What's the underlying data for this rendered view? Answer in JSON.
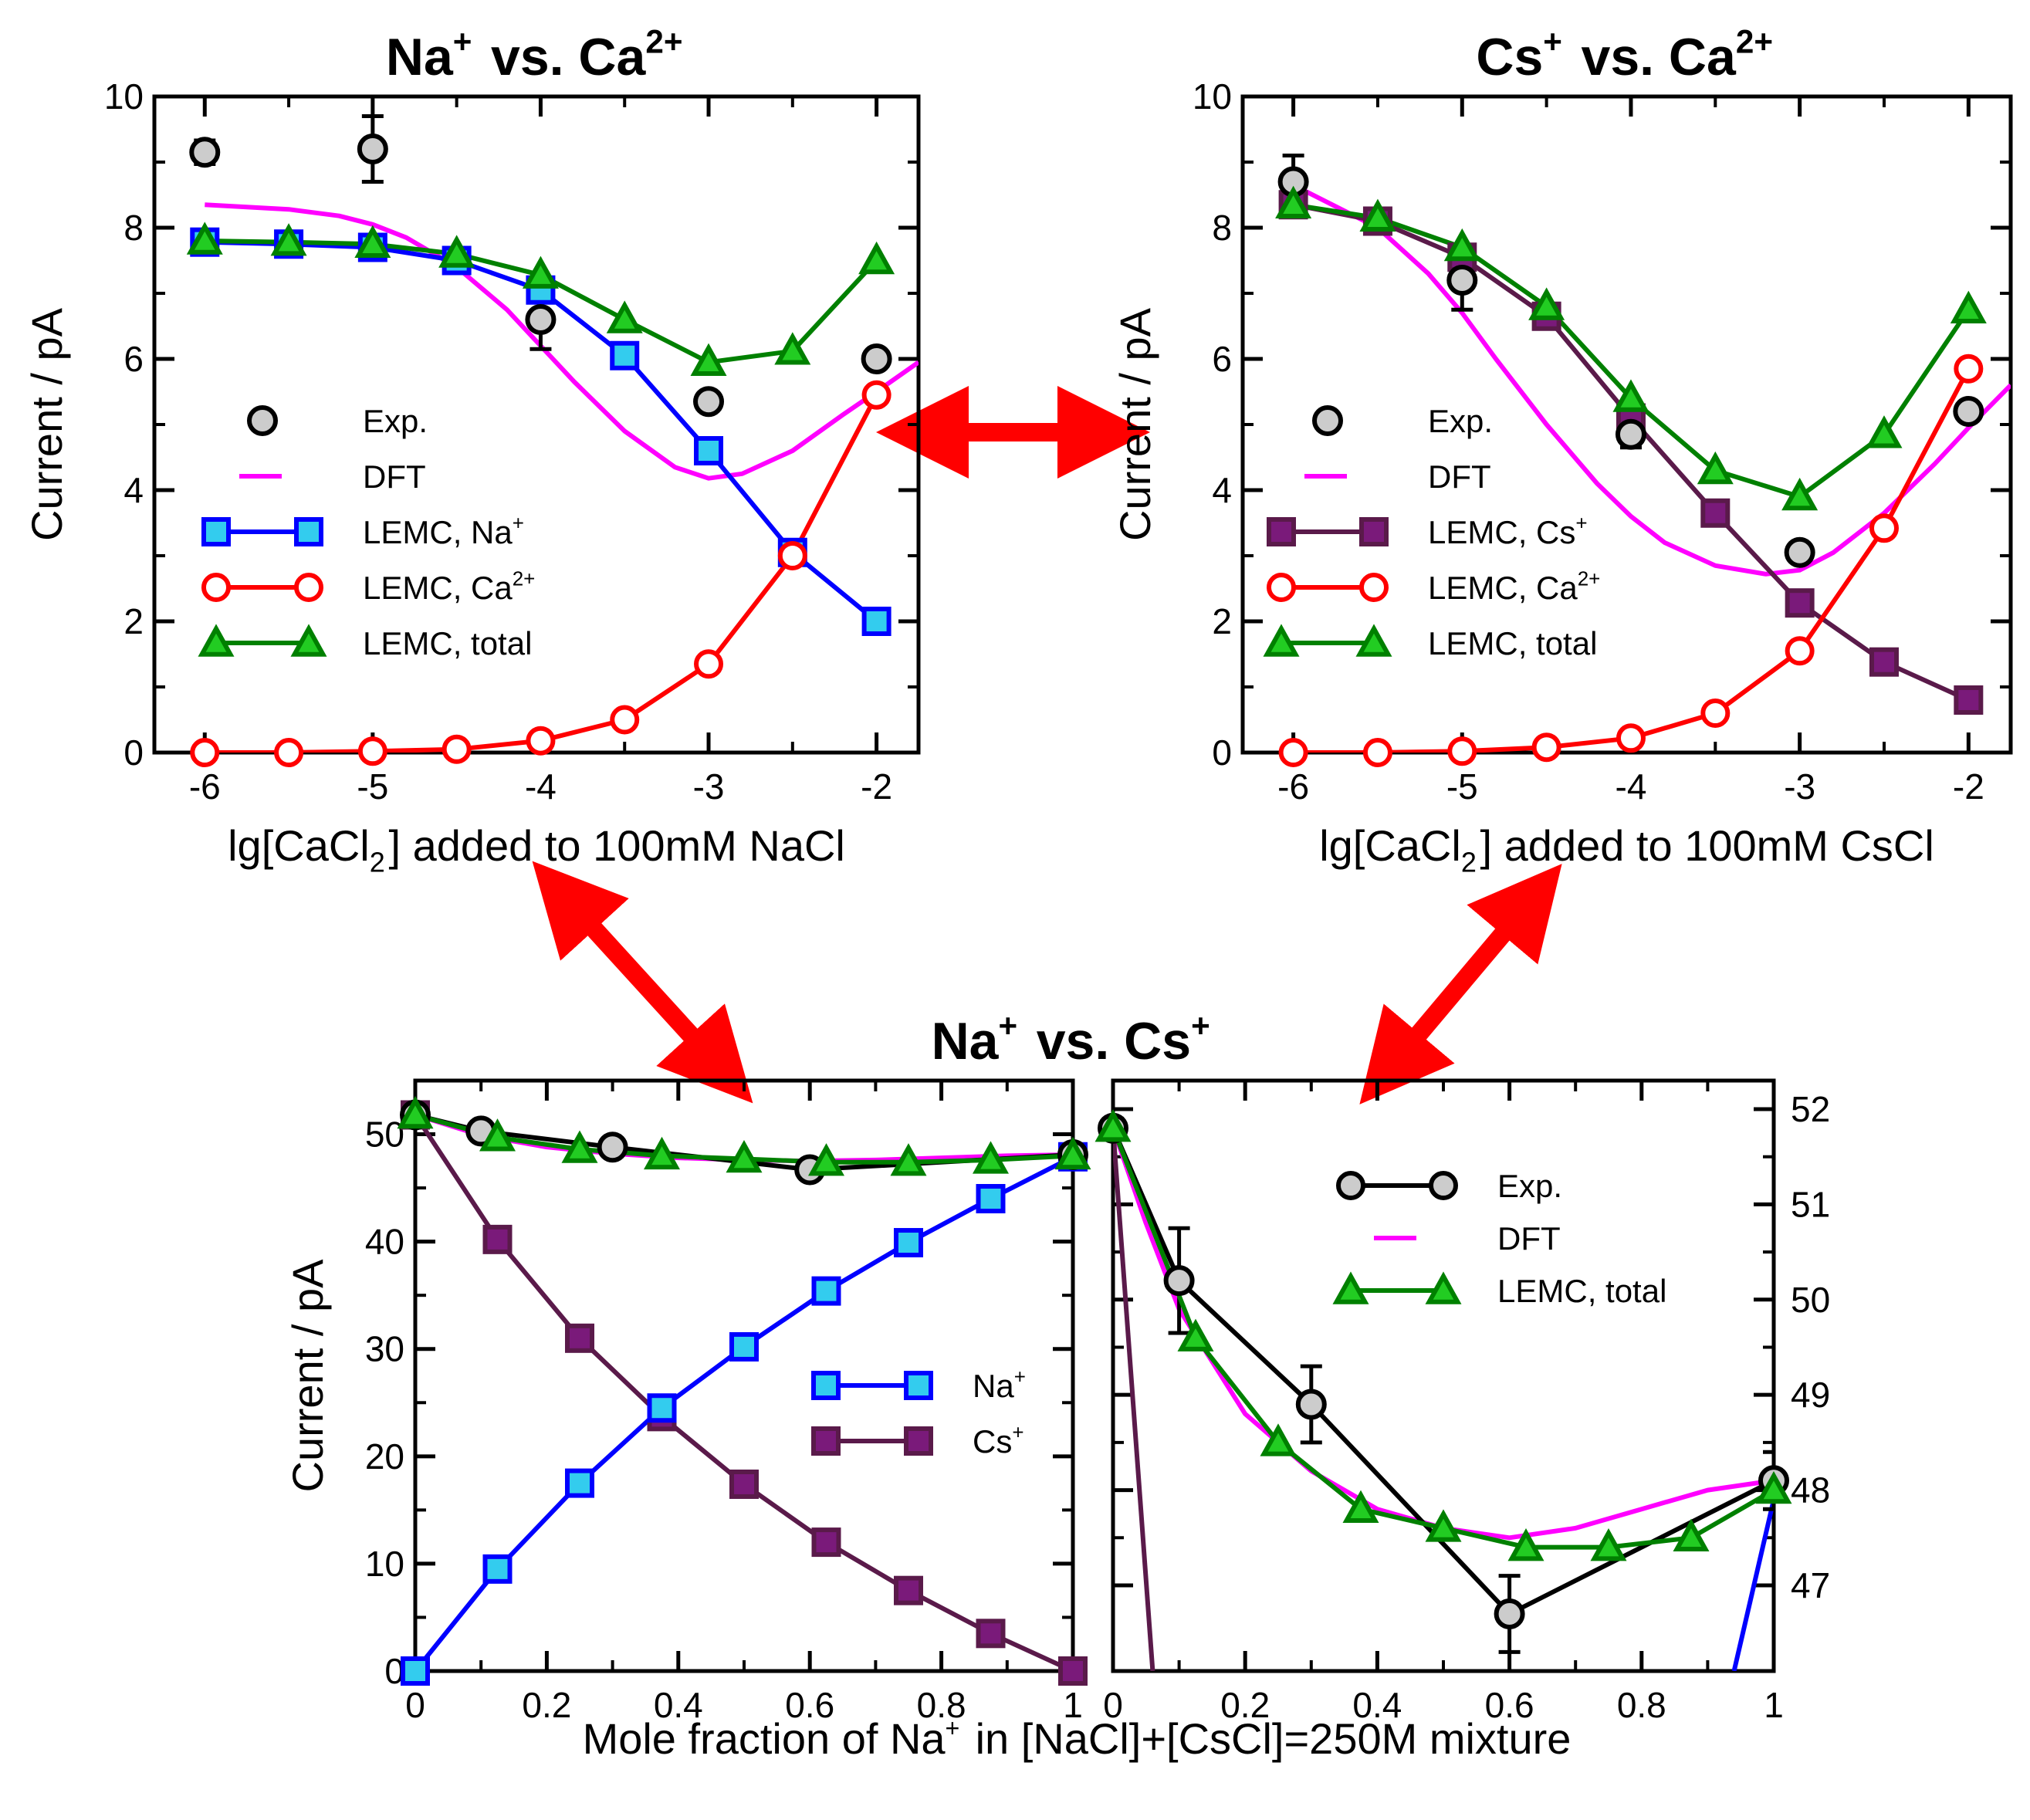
{
  "colors": {
    "exp_fill": "#cccccc",
    "dft": "#ff00ff",
    "na": "#0000ff",
    "na_fill": "#33ccee",
    "ca": "#ff0000",
    "cs": "#5a1a4a",
    "cs_fill": "#7a1a7a",
    "total": "#008000",
    "total_fill": "#22cc22",
    "arrow": "#ff0000"
  },
  "chart_data": [
    {
      "id": "na_ca",
      "type": "line",
      "title": "Na<sup>+</sup> vs. Ca<sup>2+</sup>",
      "xlabel": "lg[CaCl<sub>2</sub>] added to 100mM NaCl",
      "ylabel": "Current / pA",
      "xlim": [
        -6.3,
        -1.75
      ],
      "ylim": [
        0,
        10
      ],
      "xticks": [
        -6,
        -5,
        -4,
        -3,
        -2
      ],
      "xtick_labels": [
        "-6",
        "-5",
        "-4",
        "-3",
        "-2"
      ],
      "yticks": [
        0,
        2,
        4,
        6,
        8,
        10
      ],
      "ytick_labels": [
        "0",
        "2",
        "4",
        "6",
        "8",
        "10"
      ],
      "legend": [
        {
          "key": "exp",
          "label": "Exp."
        },
        {
          "key": "dft",
          "label": "DFT"
        },
        {
          "key": "ion1",
          "label": "LEMC, Na<sup>+</sup>"
        },
        {
          "key": "ion2",
          "label": "LEMC, Ca<sup>2+</sup>"
        },
        {
          "key": "total",
          "label": "LEMC, total"
        }
      ],
      "series": [
        {
          "key": "exp",
          "name": "Exp.",
          "marker": "circle",
          "line": false,
          "x": [
            -6,
            -5,
            -4,
            -3,
            -2
          ],
          "y": [
            9.15,
            9.2,
            6.6,
            5.35,
            6.0
          ],
          "yerr": [
            0.18,
            0.5,
            0.45,
            0.12,
            0.12
          ]
        },
        {
          "key": "dft",
          "name": "DFT",
          "marker": "none",
          "line": true,
          "x": [
            -6.0,
            -5.5,
            -5.2,
            -5.0,
            -4.8,
            -4.5,
            -4.2,
            -4.0,
            -3.8,
            -3.5,
            -3.2,
            -3.0,
            -2.8,
            -2.5,
            -2.2,
            -2.0,
            -1.75
          ],
          "y": [
            8.35,
            8.28,
            8.18,
            8.05,
            7.85,
            7.4,
            6.75,
            6.2,
            5.65,
            4.9,
            4.35,
            4.18,
            4.25,
            4.6,
            5.15,
            5.5,
            5.95
          ]
        },
        {
          "key": "ion1",
          "name": "LEMC, Na<sup>+</sup>",
          "marker": "square",
          "line": true,
          "x": [
            -6,
            -5.5,
            -5,
            -4.5,
            -4,
            -3.5,
            -3,
            -2.5,
            -2
          ],
          "y": [
            7.78,
            7.75,
            7.7,
            7.5,
            7.05,
            6.05,
            4.6,
            3.05,
            2.0
          ]
        },
        {
          "key": "ion2",
          "name": "LEMC, Ca<sup>2+</sup>",
          "marker": "open-circle",
          "line": true,
          "x": [
            -6,
            -5.5,
            -5,
            -4.5,
            -4,
            -3.5,
            -3,
            -2.5,
            -2
          ],
          "y": [
            0.0,
            0.0,
            0.02,
            0.05,
            0.18,
            0.5,
            1.35,
            3.0,
            5.45
          ]
        },
        {
          "key": "total",
          "name": "LEMC, total",
          "marker": "triangle",
          "line": true,
          "x": [
            -6,
            -5.5,
            -5,
            -4.5,
            -4,
            -3.5,
            -3,
            -2.5,
            -2
          ],
          "y": [
            7.8,
            7.78,
            7.75,
            7.6,
            7.28,
            6.6,
            5.95,
            6.12,
            7.5
          ]
        }
      ]
    },
    {
      "id": "cs_ca",
      "type": "line",
      "title": "Cs<sup>+</sup> vs. Ca<sup>2+</sup>",
      "xlabel": "lg[CaCl<sub>2</sub>] added to 100mM CsCl",
      "ylabel": "Current / pA",
      "xlim": [
        -6.3,
        -1.75
      ],
      "ylim": [
        0,
        10
      ],
      "xticks": [
        -6,
        -5,
        -4,
        -3,
        -2
      ],
      "xtick_labels": [
        "-6",
        "-5",
        "-4",
        "-3",
        "-2"
      ],
      "yticks": [
        0,
        2,
        4,
        6,
        8,
        10
      ],
      "ytick_labels": [
        "0",
        "2",
        "4",
        "6",
        "8",
        "10"
      ],
      "legend": [
        {
          "key": "exp",
          "label": "Exp."
        },
        {
          "key": "dft",
          "label": "DFT"
        },
        {
          "key": "ion1",
          "label": "LEMC, Cs<sup>+</sup>"
        },
        {
          "key": "ion2",
          "label": "LEMC, Ca<sup>2+</sup>"
        },
        {
          "key": "total",
          "label": "LEMC, total"
        }
      ],
      "series": [
        {
          "key": "exp",
          "name": "Exp.",
          "marker": "circle",
          "line": false,
          "x": [
            -6,
            -5,
            -4,
            -3,
            -2
          ],
          "y": [
            8.7,
            7.2,
            4.85,
            3.05,
            5.2
          ],
          "yerr": [
            0.4,
            0.45,
            0.2,
            0.1,
            0.1
          ]
        },
        {
          "key": "dft",
          "name": "DFT",
          "marker": "none",
          "line": true,
          "x": [
            -6.0,
            -5.5,
            -5.2,
            -5.0,
            -4.8,
            -4.5,
            -4.2,
            -4.0,
            -3.8,
            -3.5,
            -3.2,
            -3.0,
            -2.8,
            -2.5,
            -2.2,
            -2.0,
            -1.75
          ],
          "y": [
            8.65,
            8.0,
            7.3,
            6.7,
            6.0,
            5.0,
            4.1,
            3.6,
            3.2,
            2.85,
            2.72,
            2.78,
            3.05,
            3.65,
            4.4,
            4.95,
            5.6
          ]
        },
        {
          "key": "ion1",
          "name": "LEMC, Cs<sup>+</sup>",
          "marker": "square",
          "line": true,
          "x": [
            -6,
            -5.5,
            -5,
            -4.5,
            -4,
            -3.5,
            -3,
            -2.5,
            -2
          ],
          "y": [
            8.35,
            8.1,
            7.55,
            6.65,
            5.1,
            3.65,
            2.28,
            1.38,
            0.8
          ]
        },
        {
          "key": "ion2",
          "name": "LEMC, Ca<sup>2+</sup>",
          "marker": "open-circle",
          "line": true,
          "x": [
            -6,
            -5.5,
            -5,
            -4.5,
            -4,
            -3.5,
            -3,
            -2.5,
            -2
          ],
          "y": [
            0.0,
            0.0,
            0.02,
            0.08,
            0.22,
            0.6,
            1.55,
            3.42,
            5.85
          ]
        },
        {
          "key": "total",
          "name": "LEMC, total",
          "marker": "triangle",
          "line": true,
          "x": [
            -6,
            -5.5,
            -5,
            -4.5,
            -4,
            -3.5,
            -3,
            -2.5,
            -2
          ],
          "y": [
            8.35,
            8.15,
            7.7,
            6.8,
            5.4,
            4.3,
            3.9,
            4.85,
            6.75
          ]
        }
      ]
    },
    {
      "id": "na_cs_full",
      "type": "line",
      "title": "Na<sup>+</sup> vs. Cs<sup>+</sup>",
      "xlabel": "Mole fraction of Na<sup>+</sup> in [NaCl]+[CsCl]=250M mixture",
      "ylabel": "Current / pA",
      "xlim": [
        0,
        1
      ],
      "ylim": [
        0,
        55
      ],
      "xticks": [
        0,
        0.2,
        0.4,
        0.6,
        0.8,
        1
      ],
      "xtick_labels": [
        "0",
        "0.2",
        "0.4",
        "0.6",
        "0.8",
        "1"
      ],
      "yticks": [
        0,
        10,
        20,
        30,
        40,
        50
      ],
      "ytick_labels": [
        "0",
        "10",
        "20",
        "30",
        "40",
        "50"
      ],
      "legend": [
        {
          "key": "na",
          "label": "Na<sup>+</sup>"
        },
        {
          "key": "cs",
          "label": "Cs<sup>+</sup>"
        }
      ],
      "series": [
        {
          "key": "exp",
          "name": "Exp.",
          "marker": "circle",
          "line": true,
          "x": [
            0,
            0.1,
            0.3,
            0.6,
            1.0
          ],
          "y": [
            51.8,
            50.3,
            48.8,
            46.7,
            48.1
          ]
        },
        {
          "key": "dft",
          "name": "DFT",
          "marker": "none",
          "line": true,
          "x": [
            0,
            0.1,
            0.2,
            0.3,
            0.4,
            0.5,
            0.6,
            0.7,
            0.8,
            0.9,
            1.0
          ],
          "y": [
            51.8,
            49.9,
            48.8,
            48.2,
            47.8,
            47.6,
            47.5,
            47.6,
            47.8,
            48.0,
            48.1
          ]
        },
        {
          "key": "na",
          "name": "Na<sup>+</sup>",
          "marker": "square",
          "line": true,
          "x": [
            0,
            0.125,
            0.25,
            0.375,
            0.5,
            0.625,
            0.75,
            0.875,
            1.0
          ],
          "y": [
            0.0,
            9.5,
            17.5,
            24.5,
            30.2,
            35.4,
            39.9,
            44.0,
            47.9
          ]
        },
        {
          "key": "cs",
          "name": "Cs<sup>+</sup>",
          "marker": "square",
          "line": true,
          "x": [
            0,
            0.125,
            0.25,
            0.375,
            0.5,
            0.625,
            0.75,
            0.875,
            1.0
          ],
          "y": [
            51.8,
            40.2,
            31.0,
            23.7,
            17.4,
            12.0,
            7.5,
            3.5,
            0.0
          ]
        },
        {
          "key": "total",
          "name": "LEMC, total",
          "marker": "triangle",
          "line": true,
          "x": [
            0,
            0.125,
            0.25,
            0.375,
            0.5,
            0.625,
            0.75,
            0.875,
            1.0
          ],
          "y": [
            51.8,
            49.7,
            48.6,
            48.0,
            47.7,
            47.4,
            47.4,
            47.6,
            48.0
          ]
        }
      ]
    },
    {
      "id": "na_cs_zoom",
      "type": "line",
      "title": "",
      "xlabel": "",
      "ylabel": "",
      "xlim": [
        0,
        1
      ],
      "ylim": [
        46.1,
        52.3
      ],
      "xticks": [
        0,
        0.2,
        0.4,
        0.6,
        0.8,
        1
      ],
      "xtick_labels": [
        "0",
        "0.2",
        "0.4",
        "0.6",
        "0.8",
        "1"
      ],
      "yticks": [
        47,
        48,
        49,
        50,
        51,
        52
      ],
      "ytick_labels": [
        "47",
        "48",
        "49",
        "50",
        "51",
        "52"
      ],
      "legend": [
        {
          "key": "exp",
          "label": "Exp."
        },
        {
          "key": "dft",
          "label": "DFT"
        },
        {
          "key": "total",
          "label": "LEMC, total"
        }
      ],
      "series": [
        {
          "key": "exp",
          "name": "Exp.",
          "marker": "circle",
          "line": true,
          "x": [
            0,
            0.1,
            0.3,
            0.6,
            1.0
          ],
          "y": [
            51.8,
            50.2,
            48.9,
            46.7,
            48.1
          ],
          "yerr": [
            0.1,
            0.55,
            0.4,
            0.4,
            0.3
          ]
        },
        {
          "key": "dft",
          "name": "DFT",
          "marker": "none",
          "line": true,
          "x": [
            0,
            0.05,
            0.1,
            0.2,
            0.3,
            0.4,
            0.5,
            0.6,
            0.7,
            0.8,
            0.9,
            1.0
          ],
          "y": [
            51.8,
            50.8,
            49.9,
            48.8,
            48.2,
            47.8,
            47.6,
            47.5,
            47.6,
            47.8,
            48.0,
            48.1
          ]
        },
        {
          "key": "total",
          "name": "LEMC, total",
          "marker": "triangle",
          "line": true,
          "x": [
            0,
            0.125,
            0.25,
            0.375,
            0.5,
            0.625,
            0.75,
            0.875,
            1.0
          ],
          "y": [
            51.8,
            49.6,
            48.5,
            47.8,
            47.6,
            47.4,
            47.4,
            47.5,
            48.0
          ]
        },
        {
          "key": "cs",
          "name": "Cs<sup>+</sup>",
          "marker": "none",
          "line": true,
          "x": [
            0,
            0.06
          ],
          "y": [
            51.8,
            46.1
          ]
        },
        {
          "key": "na",
          "name": "Na<sup>+</sup>",
          "marker": "none",
          "line": true,
          "x": [
            0.94,
            1.0
          ],
          "y": [
            46.1,
            47.9
          ]
        }
      ]
    }
  ]
}
